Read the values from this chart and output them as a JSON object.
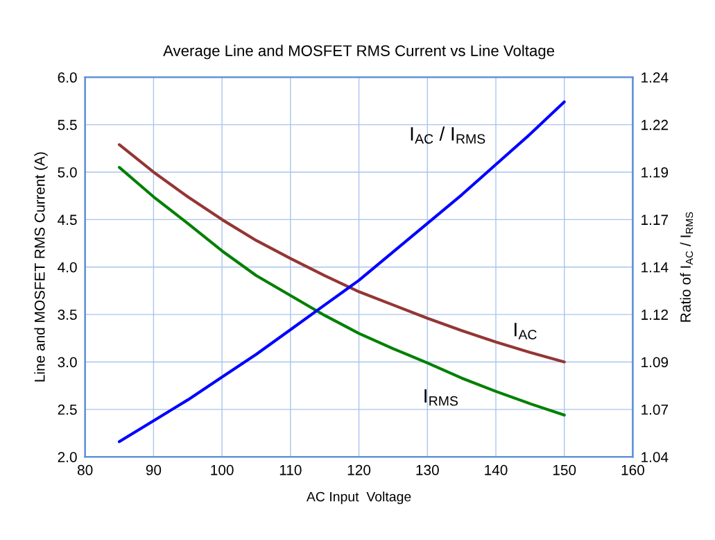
{
  "chart_data": {
    "type": "line",
    "title": "Average Line and MOSFET RMS Current vs Line Voltage",
    "xlabel": "AC Input  Voltage",
    "ylabel": "Line and MOSFET RMS Current (A)",
    "y2label": "Ratio of I$_{AC}$ / I$_{RMS}$",
    "x": [
      85,
      90,
      95,
      100,
      105,
      110,
      115,
      120,
      125,
      130,
      135,
      140,
      145,
      150
    ],
    "series": [
      {
        "name": "I$_{AC}$",
        "color": "#943634",
        "values": [
          5.29,
          5.0,
          4.74,
          4.5,
          4.28,
          4.09,
          3.91,
          3.74,
          3.6,
          3.46,
          3.33,
          3.21,
          3.1,
          3.0
        ]
      },
      {
        "name": "I$_{RMS}$",
        "color": "#008000",
        "values": [
          5.05,
          4.74,
          4.46,
          4.17,
          3.91,
          3.7,
          3.49,
          3.3,
          3.14,
          2.99,
          2.83,
          2.69,
          2.56,
          2.44
        ]
      },
      {
        "name": "I$_{AC}$ / I$_{RMS}$",
        "color": "#0000ff",
        "axis": "y2",
        "values": [
          1.048,
          1.059,
          1.07,
          1.082,
          1.094,
          1.107,
          1.12,
          1.133,
          1.148,
          1.163,
          1.178,
          1.194,
          1.21,
          1.227
        ]
      }
    ],
    "xlim": [
      80,
      160
    ],
    "xticks": [
      80,
      90,
      100,
      110,
      120,
      130,
      140,
      150,
      160
    ],
    "ylim": [
      2.0,
      6.0
    ],
    "yticks": [
      {
        "value": 2.0,
        "label": "2.0"
      },
      {
        "value": 2.5,
        "label": "2.5"
      },
      {
        "value": 3.0,
        "label": "3.0"
      },
      {
        "value": 3.5,
        "label": "3.5"
      },
      {
        "value": 4.0,
        "label": "4.0"
      },
      {
        "value": 4.5,
        "label": "4.5"
      },
      {
        "value": 5.0,
        "label": "5.0"
      },
      {
        "value": 5.5,
        "label": "5.5"
      },
      {
        "value": 6.0,
        "label": "6.0"
      }
    ],
    "y2lim": [
      1.04,
      1.24
    ],
    "y2ticks": [
      1.04,
      {
        "value": 1.065,
        "label": "1.07"
      },
      1.09,
      {
        "value": 1.115,
        "label": "1.12"
      },
      1.14,
      {
        "value": 1.165,
        "label": "1.17"
      },
      1.19,
      {
        "value": 1.215,
        "label": "1.22"
      },
      1.24
    ],
    "grid": true,
    "marker": "none",
    "line_style": "solid"
  }
}
